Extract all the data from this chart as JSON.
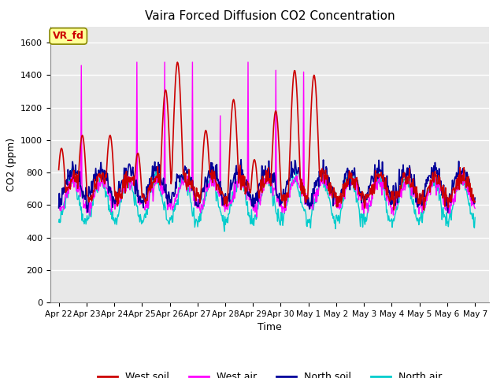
{
  "title": "Vaira Forced Diffusion CO2 Concentration",
  "xlabel": "Time",
  "ylabel": "CO2 (ppm)",
  "ylim": [
    0,
    1700
  ],
  "yticks": [
    0,
    200,
    400,
    600,
    800,
    1000,
    1200,
    1400,
    1600
  ],
  "colors": {
    "west_soil": "#cc0000",
    "west_air": "#ff00ff",
    "north_soil": "#000099",
    "north_air": "#00cccc"
  },
  "legend_labels": [
    "West soil",
    "West air",
    "North soil",
    "North air"
  ],
  "annotation_text": "VR_fd",
  "annotation_color": "#cc0000",
  "annotation_bg": "#ffff99",
  "background_color": "#e8e8e8",
  "x_tick_labels": [
    "Apr 22",
    "Apr 23",
    "Apr 24",
    "Apr 25",
    "Apr 26",
    "Apr 27",
    "Apr 28",
    "Apr 29",
    "Apr 30",
    "May 1",
    "May 2",
    "May 3",
    "May 4",
    "May 5",
    "May 6",
    "May 7"
  ],
  "x_tick_positions": [
    0,
    1,
    2,
    3,
    4,
    5,
    6,
    7,
    8,
    9,
    10,
    11,
    12,
    13,
    14,
    15
  ],
  "figsize": [
    6.4,
    4.8
  ],
  "dpi": 100
}
